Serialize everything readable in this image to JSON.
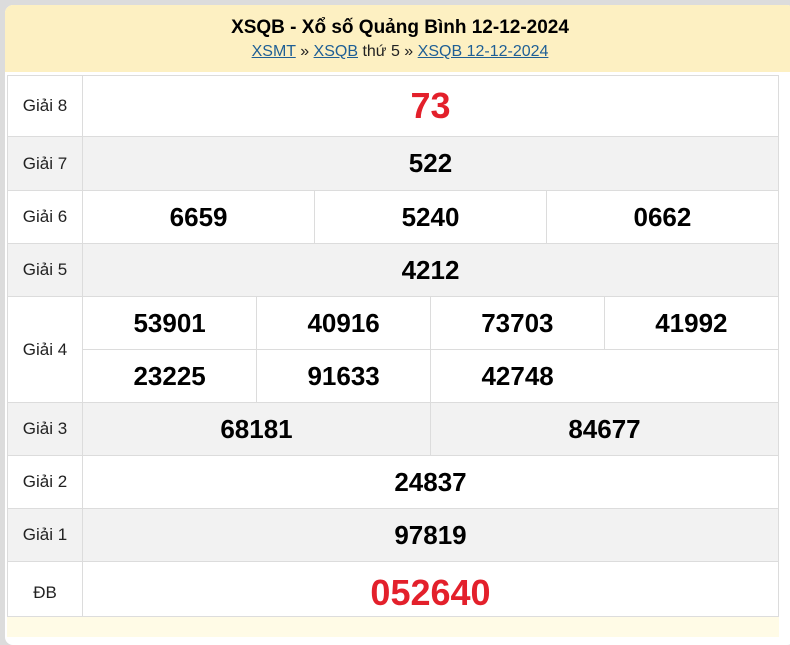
{
  "header": {
    "title": "XSQB - Xổ số Quảng Bình 12-12-2024",
    "breadcrumb": {
      "link1": "XSMT",
      "sep1": " » ",
      "link2": "XSQB",
      "text": " thứ 5",
      "sep2": " » ",
      "link3": "XSQB 12-12-2024"
    }
  },
  "prizes": [
    {
      "label": "Giải 8",
      "rows": [
        [
          "73"
        ]
      ],
      "highlight": true
    },
    {
      "label": "Giải 7",
      "rows": [
        [
          "522"
        ]
      ]
    },
    {
      "label": "Giải 6",
      "rows": [
        [
          "6659",
          "5240",
          "0662"
        ]
      ]
    },
    {
      "label": "Giải 5",
      "rows": [
        [
          "4212"
        ]
      ]
    },
    {
      "label": "Giải 4",
      "rows": [
        [
          "53901",
          "40916",
          "73703",
          "41992"
        ],
        [
          "23225",
          "91633",
          "42748"
        ]
      ]
    },
    {
      "label": "Giải 3",
      "rows": [
        [
          "68181",
          "84677"
        ]
      ]
    },
    {
      "label": "Giải 2",
      "rows": [
        [
          "24837"
        ]
      ]
    },
    {
      "label": "Giải 1",
      "rows": [
        [
          "97819"
        ]
      ]
    },
    {
      "label": "ĐB",
      "rows": [
        [
          "052640"
        ]
      ],
      "highlight": true
    }
  ],
  "colors": {
    "header_bg": "#fdf0c2",
    "highlight": "#e3202b",
    "link": "#1f5f95"
  }
}
